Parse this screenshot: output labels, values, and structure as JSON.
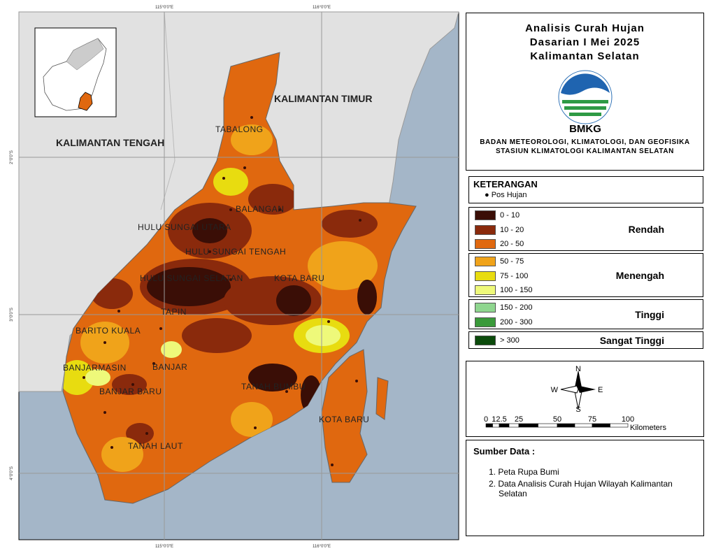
{
  "map": {
    "lon_labels": [
      "115°0'0\"E",
      "116°0'0\"E"
    ],
    "lat_labels": [
      "2°0'0\"S",
      "3°0'0\"S",
      "4°0'0\"S"
    ],
    "region_labels": [
      "KALIMANTAN TIMUR",
      "KALIMANTAN TENGAH"
    ],
    "district_labels": [
      "TABALONG",
      "BALANGAN",
      "HULU SUNGAI UTARA",
      "HULU SUNGAI TENGAH",
      "HULU SUNGAI SELATAN",
      "KOTA BARU",
      "TAPIN",
      "BARITO KUALA",
      "BANJARMASIN",
      "BANJAR",
      "BANJAR BARU",
      "TANAH BUMBU",
      "KOTA BARU",
      "TANAH LAUT"
    ]
  },
  "title": [
    "Analisis Curah Hujan",
    "Dasarian I Mei 2025",
    "Kalimantan Selatan"
  ],
  "logo_text": "BMKG",
  "agency": [
    "BADAN METEOROLOGI, KLIMATOLOGI, DAN GEOFISIKA",
    "STASIUN KLIMATOLOGI KALIMANTAN SELATAN"
  ],
  "legend": {
    "title": "KETERANGAN",
    "point": "Pos Hujan",
    "groups": [
      {
        "name": "Rendah",
        "items": [
          {
            "label": "0 - 10",
            "color": "#3a0e06"
          },
          {
            "label": "10 - 20",
            "color": "#8a2a0c"
          },
          {
            "label": "20 - 50",
            "color": "#e0680f"
          }
        ]
      },
      {
        "name": "Menengah",
        "items": [
          {
            "label": "50 - 75",
            "color": "#f0a31a"
          },
          {
            "label": "75 - 100",
            "color": "#e8dc10"
          },
          {
            "label": "100 - 150",
            "color": "#eef97a"
          }
        ]
      },
      {
        "name": "Tinggi",
        "items": [
          {
            "label": "150 - 200",
            "color": "#8fd68f"
          },
          {
            "label": "200 - 300",
            "color": "#3a9a3a"
          }
        ]
      },
      {
        "name": "Sangat Tinggi",
        "items": [
          {
            "label": "> 300",
            "color": "#0b4a0b"
          }
        ]
      }
    ]
  },
  "compass": [
    "N",
    "W",
    "E",
    "S"
  ],
  "scale": {
    "ticks": [
      "0",
      "12.5",
      "25",
      "50",
      "75",
      "100"
    ],
    "unit": "Kilometers"
  },
  "source": {
    "title": "Sumber Data :",
    "items": [
      "1. Peta Rupa Bumi",
      "2. Data Analisis Curah Hujan Wilayah Kalimantan Selatan"
    ]
  }
}
